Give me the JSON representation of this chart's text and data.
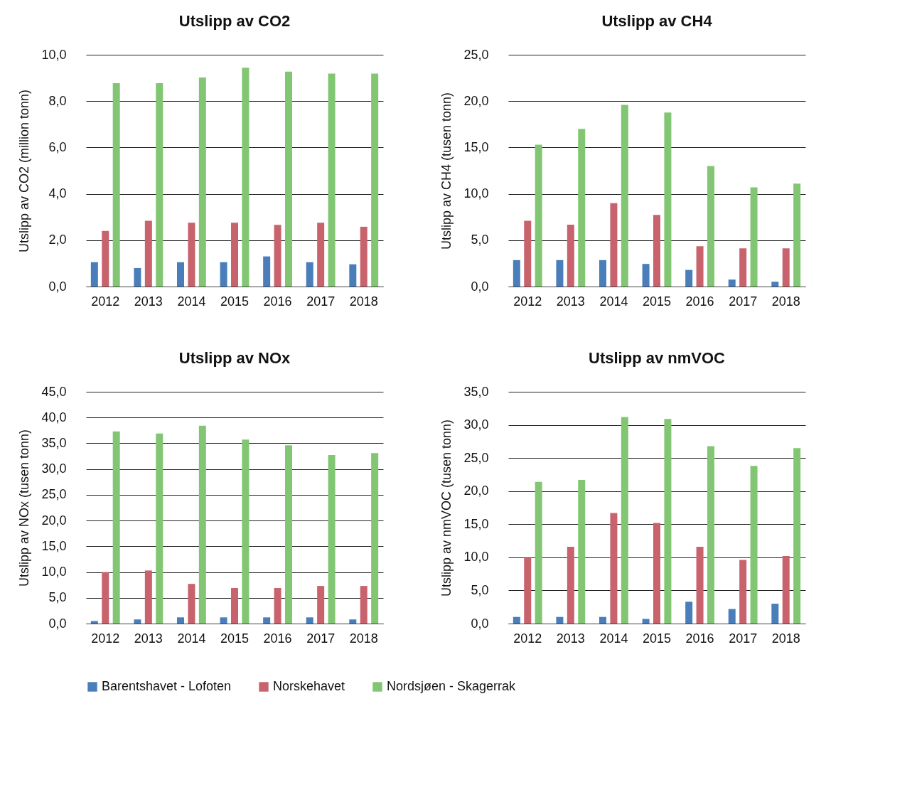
{
  "chart_data": [
    {
      "type": "bar",
      "title": "Utslipp av CO2",
      "ylabel": "Utslipp av CO2 (million tonn)",
      "categories": [
        "2012",
        "2013",
        "2014",
        "2015",
        "2016",
        "2017",
        "2018"
      ],
      "series": [
        {
          "name": "Barentshavet - Lofoten",
          "color": "#4a7ebb",
          "values": [
            1.05,
            0.8,
            1.05,
            1.05,
            1.3,
            1.05,
            0.96
          ]
        },
        {
          "name": "Norskehavet",
          "color": "#c8636e",
          "values": [
            2.4,
            2.84,
            2.75,
            2.75,
            2.66,
            2.75,
            2.58
          ]
        },
        {
          "name": "Nordsjøen - Skagerrak",
          "color": "#82c673",
          "values": [
            8.77,
            8.77,
            9.02,
            9.44,
            9.27,
            9.19,
            9.19
          ]
        }
      ],
      "ylim": [
        0,
        10
      ],
      "yticks": [
        {
          "value": 0,
          "label": "0,0"
        },
        {
          "value": 2,
          "label": "2,0"
        },
        {
          "value": 4,
          "label": "4,0"
        },
        {
          "value": 6,
          "label": "6,0"
        },
        {
          "value": 8,
          "label": "8,0"
        },
        {
          "value": 10,
          "label": "10,0"
        }
      ],
      "grid": "y",
      "legend": "bottom"
    },
    {
      "type": "bar",
      "title": "Utslipp av CH4",
      "ylabel": "Utslipp av CH4 (tusen tonn)",
      "categories": [
        "2012",
        "2013",
        "2014",
        "2015",
        "2016",
        "2017",
        "2018"
      ],
      "series": [
        {
          "name": "Barentshavet - Lofoten",
          "color": "#4a7ebb",
          "values": [
            2.85,
            2.85,
            2.85,
            2.44,
            1.79,
            0.75,
            0.52
          ]
        },
        {
          "name": "Norskehavet",
          "color": "#c8636e",
          "values": [
            7.1,
            6.68,
            9.0,
            7.72,
            4.35,
            4.12,
            4.12
          ]
        },
        {
          "name": "Nordsjøen - Skagerrak",
          "color": "#82c673",
          "values": [
            15.3,
            17.0,
            19.6,
            18.76,
            13.0,
            10.7,
            11.1
          ]
        }
      ],
      "ylim": [
        0,
        25
      ],
      "yticks": [
        {
          "value": 0,
          "label": "0,0"
        },
        {
          "value": 5,
          "label": "5,0"
        },
        {
          "value": 10,
          "label": "10,0"
        },
        {
          "value": 15,
          "label": "15,0"
        },
        {
          "value": 20,
          "label": "20,0"
        },
        {
          "value": 25,
          "label": "25,0"
        }
      ],
      "grid": "y",
      "legend": "bottom"
    },
    {
      "type": "bar",
      "title": "Utslipp av NOx",
      "ylabel": "Utslipp av NOx (tusen tonn)",
      "categories": [
        "2012",
        "2013",
        "2014",
        "2015",
        "2016",
        "2017",
        "2018"
      ],
      "series": [
        {
          "name": "Barentshavet - Lofoten",
          "color": "#4a7ebb",
          "values": [
            0.5,
            0.8,
            1.2,
            1.2,
            1.2,
            1.2,
            0.8
          ]
        },
        {
          "name": "Norskehavet",
          "color": "#c8636e",
          "values": [
            10.0,
            10.3,
            7.7,
            6.9,
            6.9,
            7.3,
            7.3
          ]
        },
        {
          "name": "Nordsjøen - Skagerrak",
          "color": "#82c673",
          "values": [
            37.3,
            36.9,
            38.4,
            35.7,
            34.6,
            32.7,
            33.1
          ]
        }
      ],
      "ylim": [
        0,
        45
      ],
      "yticks": [
        {
          "value": 0,
          "label": "0,0"
        },
        {
          "value": 5,
          "label": "5,0"
        },
        {
          "value": 10,
          "label": "10,0"
        },
        {
          "value": 15,
          "label": "15,0"
        },
        {
          "value": 20,
          "label": "20,0"
        },
        {
          "value": 25,
          "label": "25,0"
        },
        {
          "value": 30,
          "label": "30,0"
        },
        {
          "value": 35,
          "label": "35,0"
        },
        {
          "value": 40,
          "label": "40,0"
        },
        {
          "value": 45,
          "label": "45,0"
        }
      ],
      "grid": "y",
      "legend": "bottom"
    },
    {
      "type": "bar",
      "title": "Utslipp av nmVOC",
      "ylabel": "Utslipp av nmVOC  (tusen tonn)",
      "categories": [
        "2012",
        "2013",
        "2014",
        "2015",
        "2016",
        "2017",
        "2018"
      ],
      "series": [
        {
          "name": "Barentshavet - Lofoten",
          "color": "#4a7ebb",
          "values": [
            1.0,
            1.0,
            1.0,
            0.7,
            3.3,
            2.2,
            3.0
          ]
        },
        {
          "name": "Norskehavet",
          "color": "#c8636e",
          "values": [
            9.9,
            11.6,
            16.7,
            15.2,
            11.6,
            9.6,
            10.2
          ]
        },
        {
          "name": "Nordsjøen - Skagerrak",
          "color": "#82c673",
          "values": [
            21.4,
            21.7,
            31.2,
            30.9,
            26.8,
            23.8,
            26.5
          ]
        }
      ],
      "ylim": [
        0,
        35
      ],
      "yticks": [
        {
          "value": 0,
          "label": "0,0"
        },
        {
          "value": 5,
          "label": "5,0"
        },
        {
          "value": 10,
          "label": "10,0"
        },
        {
          "value": 15,
          "label": "15,0"
        },
        {
          "value": 20,
          "label": "20,0"
        },
        {
          "value": 25,
          "label": "25,0"
        },
        {
          "value": 30,
          "label": "30,0"
        },
        {
          "value": 35,
          "label": "35,0"
        }
      ],
      "grid": "y",
      "legend": "bottom"
    }
  ]
}
